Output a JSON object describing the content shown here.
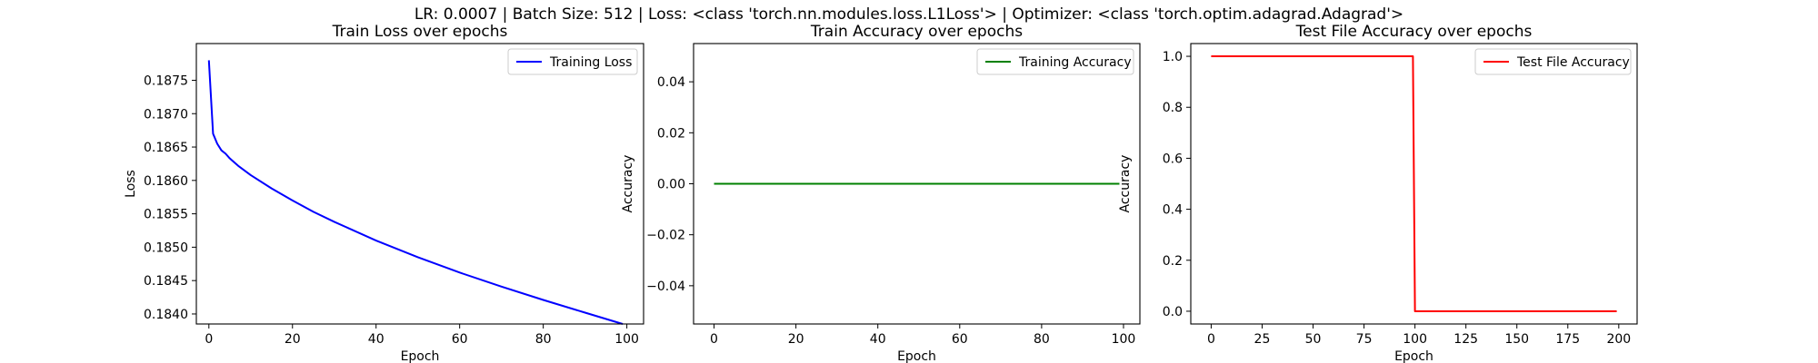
{
  "figure": {
    "suptitle": "LR: 0.0007 | Batch Size: 512 | Loss: <class 'torch.nn.modules.loss.L1Loss'> | Optimizer: <class 'torch.optim.adagrad.Adagrad'>"
  },
  "chart_data": [
    {
      "type": "line",
      "title": "Train Loss over epochs",
      "xlabel": "Epoch",
      "ylabel": "Loss",
      "xlim": [
        -3,
        104
      ],
      "ylim": [
        0.18385,
        0.18805
      ],
      "xticks": [
        0,
        20,
        40,
        60,
        80,
        100
      ],
      "xtick_labels": [
        "0",
        "20",
        "40",
        "60",
        "80",
        "100"
      ],
      "yticks": [
        0.184,
        0.1845,
        0.185,
        0.1855,
        0.186,
        0.1865,
        0.187,
        0.1875
      ],
      "ytick_labels": [
        "0.1840",
        "0.1845",
        "0.1850",
        "0.1855",
        "0.1860",
        "0.1865",
        "0.1870",
        "0.1875"
      ],
      "legend": "top-right",
      "grid": false,
      "series": [
        {
          "name": "Training Loss",
          "color": "#0000ff",
          "x": [
            0,
            1,
            2,
            3,
            4,
            5,
            7,
            10,
            15,
            20,
            25,
            30,
            40,
            50,
            60,
            70,
            80,
            90,
            99
          ],
          "y": [
            0.1878,
            0.1867,
            0.18655,
            0.18645,
            0.1864,
            0.18633,
            0.18622,
            0.18608,
            0.18588,
            0.1857,
            0.18553,
            0.18538,
            0.1851,
            0.18485,
            0.18462,
            0.18441,
            0.18421,
            0.18402,
            0.18385
          ]
        }
      ]
    },
    {
      "type": "line",
      "title": "Train Accuracy over epochs",
      "xlabel": "Epoch",
      "ylabel": "Accuracy",
      "xlim": [
        -5,
        104
      ],
      "ylim": [
        -0.055,
        0.055
      ],
      "xticks": [
        0,
        20,
        40,
        60,
        80,
        100
      ],
      "xtick_labels": [
        "0",
        "20",
        "40",
        "60",
        "80",
        "100"
      ],
      "yticks": [
        -0.04,
        -0.02,
        0.0,
        0.02,
        0.04
      ],
      "ytick_labels": [
        "−0.04",
        "−0.02",
        "0.00",
        "0.02",
        "0.04"
      ],
      "legend": "top-right",
      "grid": false,
      "series": [
        {
          "name": "Training Accuracy",
          "color": "#008000",
          "x": [
            0,
            99
          ],
          "y": [
            0,
            0
          ]
        }
      ]
    },
    {
      "type": "line",
      "title": "Test File Accuracy over epochs",
      "xlabel": "Epoch",
      "ylabel": "Accuracy",
      "xlim": [
        -10,
        209
      ],
      "ylim": [
        -0.05,
        1.05
      ],
      "xticks": [
        0,
        25,
        50,
        75,
        100,
        125,
        150,
        175,
        200
      ],
      "xtick_labels": [
        "0",
        "25",
        "50",
        "75",
        "100",
        "125",
        "150",
        "175",
        "200"
      ],
      "yticks": [
        0.0,
        0.2,
        0.4,
        0.6,
        0.8,
        1.0
      ],
      "ytick_labels": [
        "0.0",
        "0.2",
        "0.4",
        "0.6",
        "0.8",
        "1.0"
      ],
      "legend": "top-right",
      "grid": false,
      "series": [
        {
          "name": "Test File Accuracy",
          "color": "#ff0000",
          "x": [
            0,
            99,
            100,
            199
          ],
          "y": [
            1,
            1,
            0,
            0
          ]
        }
      ]
    }
  ]
}
